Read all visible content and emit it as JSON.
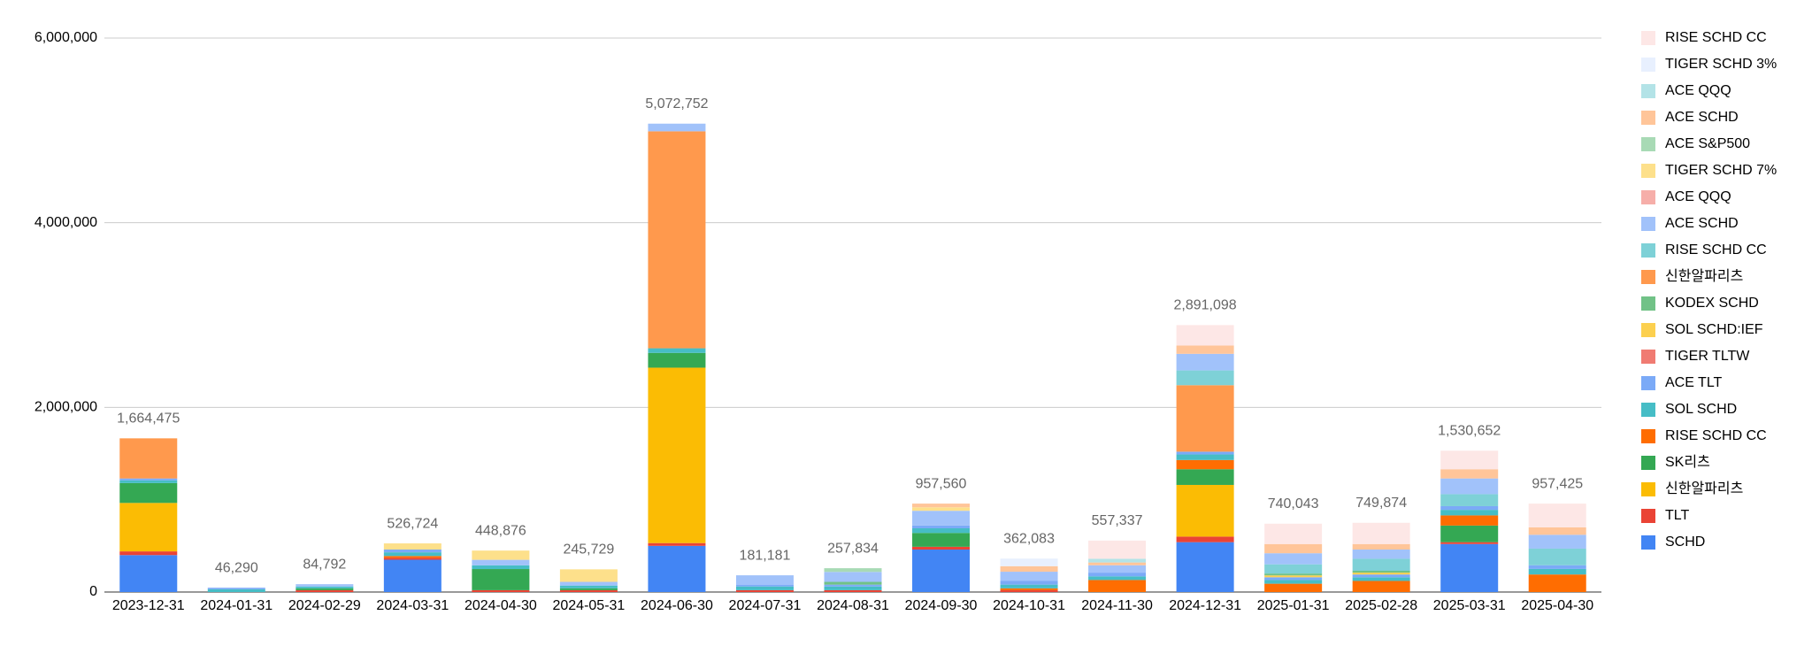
{
  "chart_data": {
    "type": "stacked_bar",
    "categories": [
      "2023-12-31",
      "2024-01-31",
      "2024-02-29",
      "2024-03-31",
      "2024-04-30",
      "2024-05-31",
      "2024-06-30",
      "2024-07-31",
      "2024-08-31",
      "2024-09-30",
      "2024-10-31",
      "2024-11-30",
      "2024-12-31",
      "2025-01-31",
      "2025-02-28",
      "2025-03-31",
      "2025-04-30"
    ],
    "series": [
      {
        "name": "SCHD",
        "color": "#4285f4",
        "values": [
          400000,
          0,
          0,
          350000,
          0,
          0,
          500000,
          0,
          0,
          460000,
          0,
          0,
          540000,
          0,
          0,
          520000,
          0
        ]
      },
      {
        "name": "TLT",
        "color": "#ea4335",
        "values": [
          40000,
          0,
          20000,
          20000,
          20000,
          20000,
          30000,
          20000,
          20000,
          30000,
          20000,
          0,
          60000,
          0,
          0,
          20000,
          0
        ]
      },
      {
        "name": "신한알파리츠",
        "color": "#fbbc04",
        "values": [
          525000,
          0,
          0,
          0,
          0,
          0,
          1900000,
          0,
          0,
          0,
          0,
          0,
          560000,
          0,
          0,
          0,
          0
        ]
      },
      {
        "name": "SK리츠",
        "color": "#34a853",
        "values": [
          215000,
          0,
          20000,
          0,
          228876,
          20000,
          160000,
          0,
          0,
          150000,
          0,
          0,
          170000,
          0,
          0,
          180000,
          0
        ]
      },
      {
        "name": "RISE SCHD CC",
        "color": "#ff6d01",
        "values": [
          0,
          0,
          0,
          20000,
          0,
          0,
          0,
          0,
          0,
          0,
          20000,
          130000,
          100000,
          90000,
          120000,
          110000,
          190000
        ]
      },
      {
        "name": "SOL SCHD",
        "color": "#46bdc6",
        "values": [
          30000,
          30000,
          20000,
          40000,
          40000,
          30000,
          50000,
          40000,
          40000,
          50000,
          40000,
          40000,
          60000,
          40000,
          40000,
          60000,
          60000
        ]
      },
      {
        "name": "ACE TLT",
        "color": "#7baaf7",
        "values": [
          20000,
          16290,
          0,
          30000,
          0,
          0,
          0,
          20000,
          20000,
          30000,
          40000,
          40000,
          30000,
          30000,
          30000,
          40000,
          40000
        ]
      },
      {
        "name": "TIGER TLTW",
        "color": "#f07b72",
        "values": [
          0,
          0,
          0,
          0,
          0,
          0,
          0,
          0,
          0,
          0,
          0,
          0,
          0,
          0,
          0,
          0,
          0
        ]
      },
      {
        "name": "SOL SCHD:IEF",
        "color": "#fcd04f",
        "values": [
          0,
          0,
          0,
          0,
          0,
          0,
          0,
          0,
          0,
          0,
          0,
          0,
          0,
          20000,
          20000,
          0,
          0
        ]
      },
      {
        "name": "KODEX SCHD",
        "color": "#71c287",
        "values": [
          0,
          0,
          0,
          0,
          0,
          0,
          0,
          0,
          30000,
          0,
          0,
          0,
          0,
          20000,
          20000,
          0,
          0
        ]
      },
      {
        "name": "신한알파리츠",
        "color": "#ff994d",
        "values": [
          434475,
          0,
          0,
          0,
          0,
          0,
          2350000,
          0,
          0,
          0,
          0,
          0,
          720000,
          0,
          0,
          0,
          0
        ]
      },
      {
        "name": "RISE SCHD CC",
        "color": "#7ed1d7",
        "values": [
          0,
          0,
          0,
          0,
          0,
          0,
          0,
          0,
          0,
          0,
          0,
          0,
          160000,
          100000,
          130000,
          130000,
          180000
        ]
      },
      {
        "name": "ACE SCHD",
        "color": "#a1c2fa",
        "values": [
          0,
          0,
          24792,
          0,
          60000,
          40000,
          82752,
          101181,
          107834,
          160000,
          100000,
          80000,
          180000,
          120000,
          100000,
          170000,
          150000
        ]
      },
      {
        "name": "ACE QQQ",
        "color": "#f6aea9",
        "values": [
          0,
          0,
          0,
          0,
          0,
          0,
          0,
          0,
          0,
          0,
          0,
          0,
          0,
          0,
          0,
          0,
          0
        ]
      },
      {
        "name": "TIGER SCHD 7%",
        "color": "#fde08b",
        "values": [
          0,
          0,
          0,
          66724,
          100000,
          135729,
          0,
          0,
          0,
          37560,
          0,
          0,
          0,
          0,
          0,
          0,
          0
        ]
      },
      {
        "name": "ACE S&P500",
        "color": "#a8dab5",
        "values": [
          0,
          0,
          0,
          0,
          0,
          0,
          0,
          0,
          40000,
          0,
          0,
          0,
          0,
          0,
          0,
          0,
          0
        ]
      },
      {
        "name": "ACE SCHD",
        "color": "#ffc599",
        "values": [
          0,
          0,
          0,
          0,
          0,
          0,
          0,
          0,
          0,
          40000,
          60000,
          30000,
          90000,
          100000,
          60000,
          100000,
          80000
        ]
      },
      {
        "name": "ACE QQQ",
        "color": "#b3e3e7",
        "values": [
          0,
          0,
          0,
          0,
          0,
          0,
          0,
          0,
          0,
          0,
          0,
          40000,
          0,
          0,
          0,
          0,
          0
        ]
      },
      {
        "name": "TIGER SCHD 3%",
        "color": "#e8f0fe",
        "values": [
          0,
          0,
          0,
          0,
          0,
          0,
          0,
          0,
          0,
          0,
          82083,
          0,
          0,
          0,
          0,
          0,
          0
        ]
      },
      {
        "name": "RISE SCHD CC",
        "color": "#fde7e6",
        "values": [
          0,
          0,
          0,
          0,
          0,
          0,
          0,
          0,
          0,
          0,
          0,
          197337,
          221098,
          220043,
          229874,
          200652,
          257425
        ]
      }
    ],
    "totals": [
      1664475,
      46290,
      84792,
      526724,
      448876,
      245729,
      5072752,
      181181,
      257834,
      957560,
      362083,
      557337,
      2891098,
      740043,
      749874,
      1530652,
      957425
    ],
    "total_labels": [
      "1,664,475",
      "46,290",
      "84,792",
      "526,724",
      "448,876",
      "245,729",
      "5,072,752",
      "181,181",
      "257,834",
      "957,560",
      "362,083",
      "557,337",
      "2,891,098",
      "740,043",
      "749,874",
      "1,530,652",
      "957,425"
    ],
    "ylim": [
      0,
      6000000
    ],
    "yticks": [
      0,
      {
        "value": 2000000,
        "label": "2,000,000"
      },
      {
        "value": 4000000,
        "label": "4,000,000"
      },
      {
        "value": 6000000,
        "label": "6,000,000"
      }
    ],
    "grid": true,
    "legend": "right"
  }
}
